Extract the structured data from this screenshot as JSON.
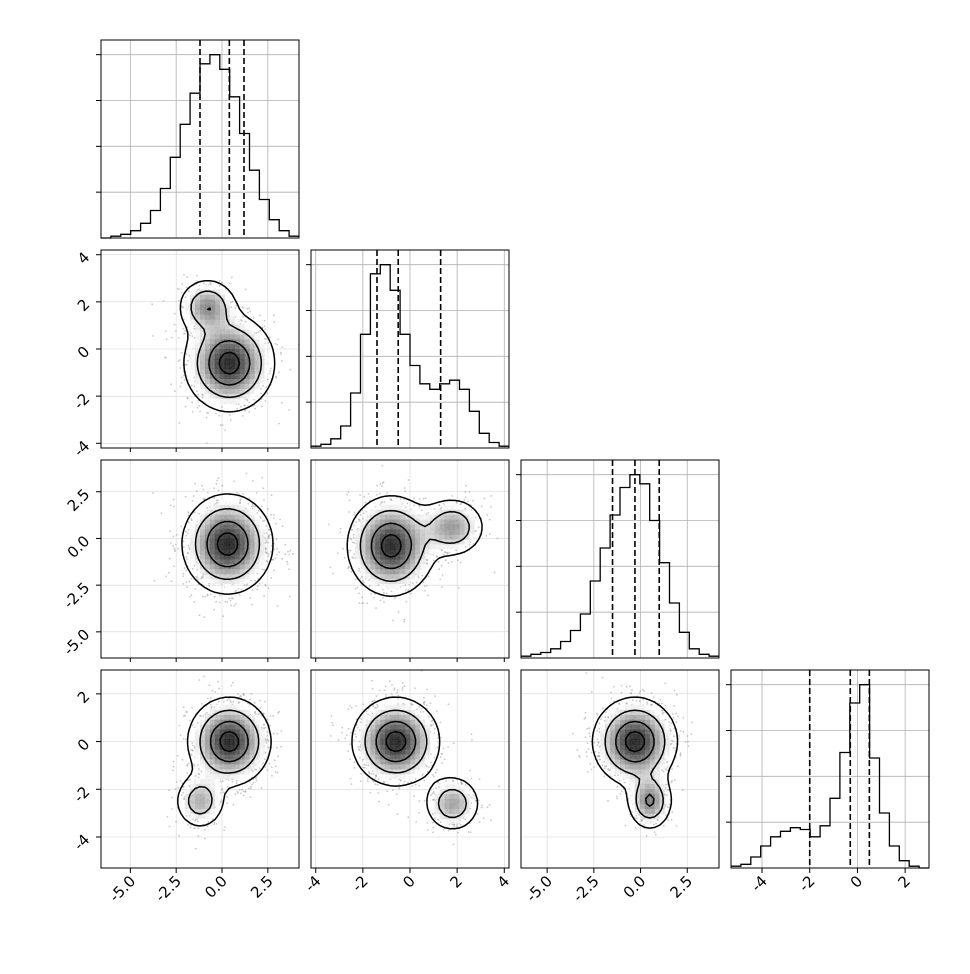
{
  "chart_data": {
    "type": "corner",
    "title": "",
    "n_params": 4,
    "axis_labels": [
      "",
      "",
      "",
      ""
    ],
    "ranges": [
      [
        -6.6,
        4.2
      ],
      [
        -4.2,
        4.2
      ],
      [
        -6.4,
        4.2
      ],
      [
        -5.3,
        3.0
      ]
    ],
    "ticks": [
      [
        -5.0,
        -2.5,
        0.0,
        2.5
      ],
      [
        -4,
        -2,
        0,
        2,
        4
      ],
      [
        -5.0,
        -2.5,
        0.0,
        2.5
      ],
      [
        -4,
        -2,
        0,
        2
      ]
    ],
    "tick_labels": [
      [
        "-5.0",
        "-2.5",
        "0.0",
        "2.5"
      ],
      [
        "-4",
        "-2",
        "0",
        "2",
        "4"
      ],
      [
        "-5.0",
        "-2.5",
        "0.0",
        "2.5"
      ],
      [
        "-4",
        "-2",
        "0",
        "2"
      ]
    ],
    "quantiles": [
      [
        -1.2,
        0.4,
        1.2
      ],
      [
        -1.4,
        -0.5,
        1.3
      ],
      [
        -1.5,
        -0.3,
        1.0
      ],
      [
        -2.0,
        -0.3,
        0.5
      ]
    ],
    "grid": true,
    "histograms": [
      {
        "param": 0,
        "bins": [
          -6.6,
          -6.06,
          -5.52,
          -4.98,
          -4.44,
          -3.9,
          -3.36,
          -2.82,
          -2.28,
          -1.74,
          -1.2,
          -0.66,
          -0.12,
          0.42,
          0.96,
          1.5,
          2.04,
          2.58,
          3.12,
          3.66,
          4.2
        ],
        "counts": [
          0.0,
          0.01,
          0.02,
          0.04,
          0.08,
          0.15,
          0.27,
          0.44,
          0.62,
          0.79,
          0.95,
          1.0,
          0.92,
          0.77,
          0.57,
          0.37,
          0.21,
          0.1,
          0.04,
          0.01
        ]
      },
      {
        "param": 1,
        "bins": [
          -4.2,
          -3.78,
          -3.36,
          -2.94,
          -2.52,
          -2.1,
          -1.68,
          -1.26,
          -0.84,
          -0.42,
          0.0,
          0.42,
          0.84,
          1.26,
          1.68,
          2.1,
          2.52,
          2.94,
          3.36,
          3.78,
          4.2
        ],
        "counts": [
          0.01,
          0.02,
          0.05,
          0.12,
          0.3,
          0.62,
          0.95,
          1.0,
          0.86,
          0.62,
          0.45,
          0.35,
          0.32,
          0.35,
          0.37,
          0.32,
          0.2,
          0.08,
          0.03,
          0.01
        ]
      },
      {
        "param": 2,
        "bins": [
          -6.4,
          -5.87,
          -5.34,
          -4.81,
          -4.28,
          -3.75,
          -3.22,
          -2.69,
          -2.16,
          -1.63,
          -1.1,
          -0.57,
          -0.04,
          0.49,
          1.02,
          1.55,
          2.08,
          2.61,
          3.14,
          3.67,
          4.2
        ],
        "counts": [
          0.01,
          0.02,
          0.03,
          0.05,
          0.09,
          0.15,
          0.24,
          0.42,
          0.6,
          0.78,
          0.93,
          1.0,
          0.95,
          0.75,
          0.52,
          0.3,
          0.14,
          0.05,
          0.02,
          0.01
        ]
      },
      {
        "param": 3,
        "bins": [
          -5.3,
          -4.885,
          -4.47,
          -4.055,
          -3.64,
          -3.225,
          -2.81,
          -2.395,
          -1.98,
          -1.565,
          -1.15,
          -0.735,
          -0.32,
          0.095,
          0.51,
          0.925,
          1.34,
          1.755,
          2.17,
          2.585,
          3.0
        ],
        "counts": [
          0.01,
          0.02,
          0.06,
          0.12,
          0.17,
          0.2,
          0.22,
          0.21,
          0.17,
          0.23,
          0.38,
          0.63,
          0.9,
          1.0,
          0.6,
          0.3,
          0.12,
          0.04,
          0.01,
          0.0
        ]
      }
    ],
    "panels": [
      {
        "x_param": 0,
        "y_param": 1,
        "modes": [
          {
            "x": 0.4,
            "y": -0.6,
            "sx": 1.2,
            "sy": 1.0,
            "w": 0.8
          },
          {
            "x": -0.8,
            "y": 1.8,
            "sx": 0.8,
            "sy": 0.6,
            "w": 0.2
          }
        ]
      },
      {
        "x_param": 0,
        "y_param": 2,
        "modes": [
          {
            "x": 0.3,
            "y": -0.3,
            "sx": 1.2,
            "sy": 1.3,
            "w": 1.0
          }
        ]
      },
      {
        "x_param": 1,
        "y_param": 2,
        "modes": [
          {
            "x": -0.8,
            "y": -0.4,
            "sx": 0.9,
            "sy": 1.3,
            "w": 0.78
          },
          {
            "x": 1.8,
            "y": 0.6,
            "sx": 0.7,
            "sy": 0.8,
            "w": 0.22
          }
        ]
      },
      {
        "x_param": 0,
        "y_param": 3,
        "modes": [
          {
            "x": 0.4,
            "y": 0.0,
            "sx": 1.1,
            "sy": 0.9,
            "w": 0.82
          },
          {
            "x": -1.2,
            "y": -2.5,
            "sx": 0.7,
            "sy": 0.6,
            "w": 0.18
          }
        ]
      },
      {
        "x_param": 1,
        "y_param": 3,
        "modes": [
          {
            "x": -0.6,
            "y": 0.0,
            "sx": 0.9,
            "sy": 0.9,
            "w": 0.8
          },
          {
            "x": 1.8,
            "y": -2.6,
            "sx": 0.6,
            "sy": 0.6,
            "w": 0.2
          }
        ]
      },
      {
        "x_param": 2,
        "y_param": 3,
        "modes": [
          {
            "x": -0.3,
            "y": 0.0,
            "sx": 1.1,
            "sy": 0.9,
            "w": 0.8
          },
          {
            "x": 0.5,
            "y": -2.5,
            "sx": 0.6,
            "sy": 0.6,
            "w": 0.2
          }
        ]
      }
    ]
  }
}
